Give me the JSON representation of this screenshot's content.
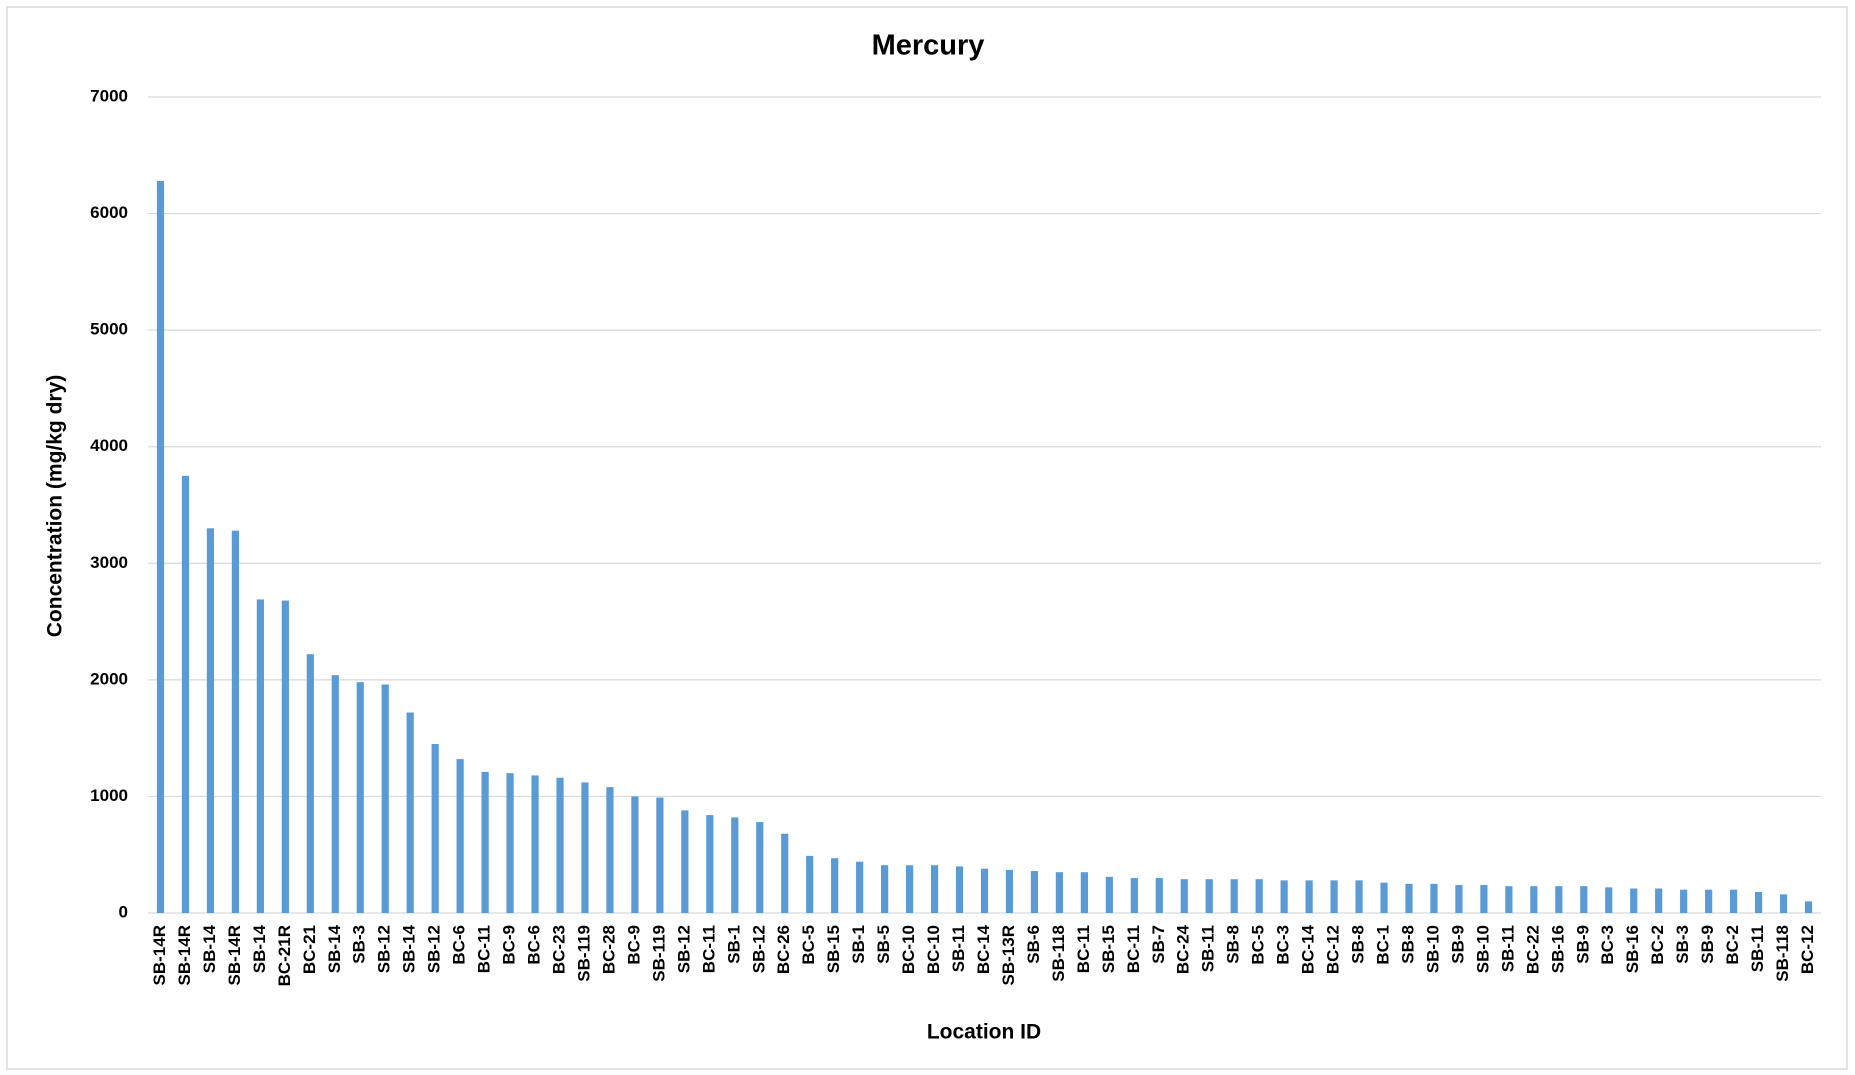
{
  "chart_data": {
    "type": "bar",
    "title": "Mercury",
    "x_label": "Location ID",
    "y_label": "Concentration (mg/kg dry)",
    "categories": [
      "SB-14R",
      "SB-14R",
      "SB-14",
      "SB-14R",
      "SB-14",
      "BC-21R",
      "BC-21",
      "SB-14",
      "SB-3",
      "SB-12",
      "SB-14",
      "SB-12",
      "BC-6",
      "BC-11",
      "BC-9",
      "BC-6",
      "BC-23",
      "SB-119",
      "BC-28",
      "BC-9",
      "SB-119",
      "SB-12",
      "BC-11",
      "SB-1",
      "SB-12",
      "BC-26",
      "BC-5",
      "SB-15",
      "SB-1",
      "SB-5",
      "BC-10",
      "BC-10",
      "SB-11",
      "BC-14",
      "SB-13R",
      "SB-6",
      "SB-118",
      "BC-11",
      "SB-15",
      "BC-11",
      "SB-7",
      "BC-24",
      "SB-11",
      "SB-8",
      "BC-5",
      "BC-3",
      "BC-14",
      "BC-12",
      "SB-8",
      "BC-1",
      "SB-8",
      "SB-10",
      "SB-9",
      "SB-10",
      "SB-11",
      "BC-22",
      "SB-16",
      "SB-9",
      "BC-3",
      "SB-16",
      "BC-2",
      "SB-3",
      "SB-9",
      "BC-2",
      "SB-11",
      "SB-118",
      "BC-12"
    ],
    "values": [
      6280,
      3750,
      3300,
      3280,
      2690,
      2680,
      2220,
      2040,
      1980,
      1960,
      1720,
      1450,
      1320,
      1210,
      1200,
      1180,
      1160,
      1120,
      1080,
      1000,
      990,
      880,
      840,
      820,
      780,
      680,
      490,
      470,
      440,
      410,
      410,
      410,
      400,
      380,
      370,
      360,
      350,
      350,
      310,
      300,
      300,
      290,
      290,
      290,
      290,
      280,
      280,
      280,
      280,
      260,
      250,
      250,
      240,
      240,
      230,
      230,
      230,
      230,
      220,
      210,
      210,
      200,
      200,
      200,
      180,
      160,
      100
    ],
    "color": "#5b9bd5",
    "ylim": [
      0,
      7000
    ],
    "yticks": [
      0,
      1000,
      2000,
      3000,
      4000,
      5000,
      6000,
      7000
    ],
    "grid": true
  }
}
